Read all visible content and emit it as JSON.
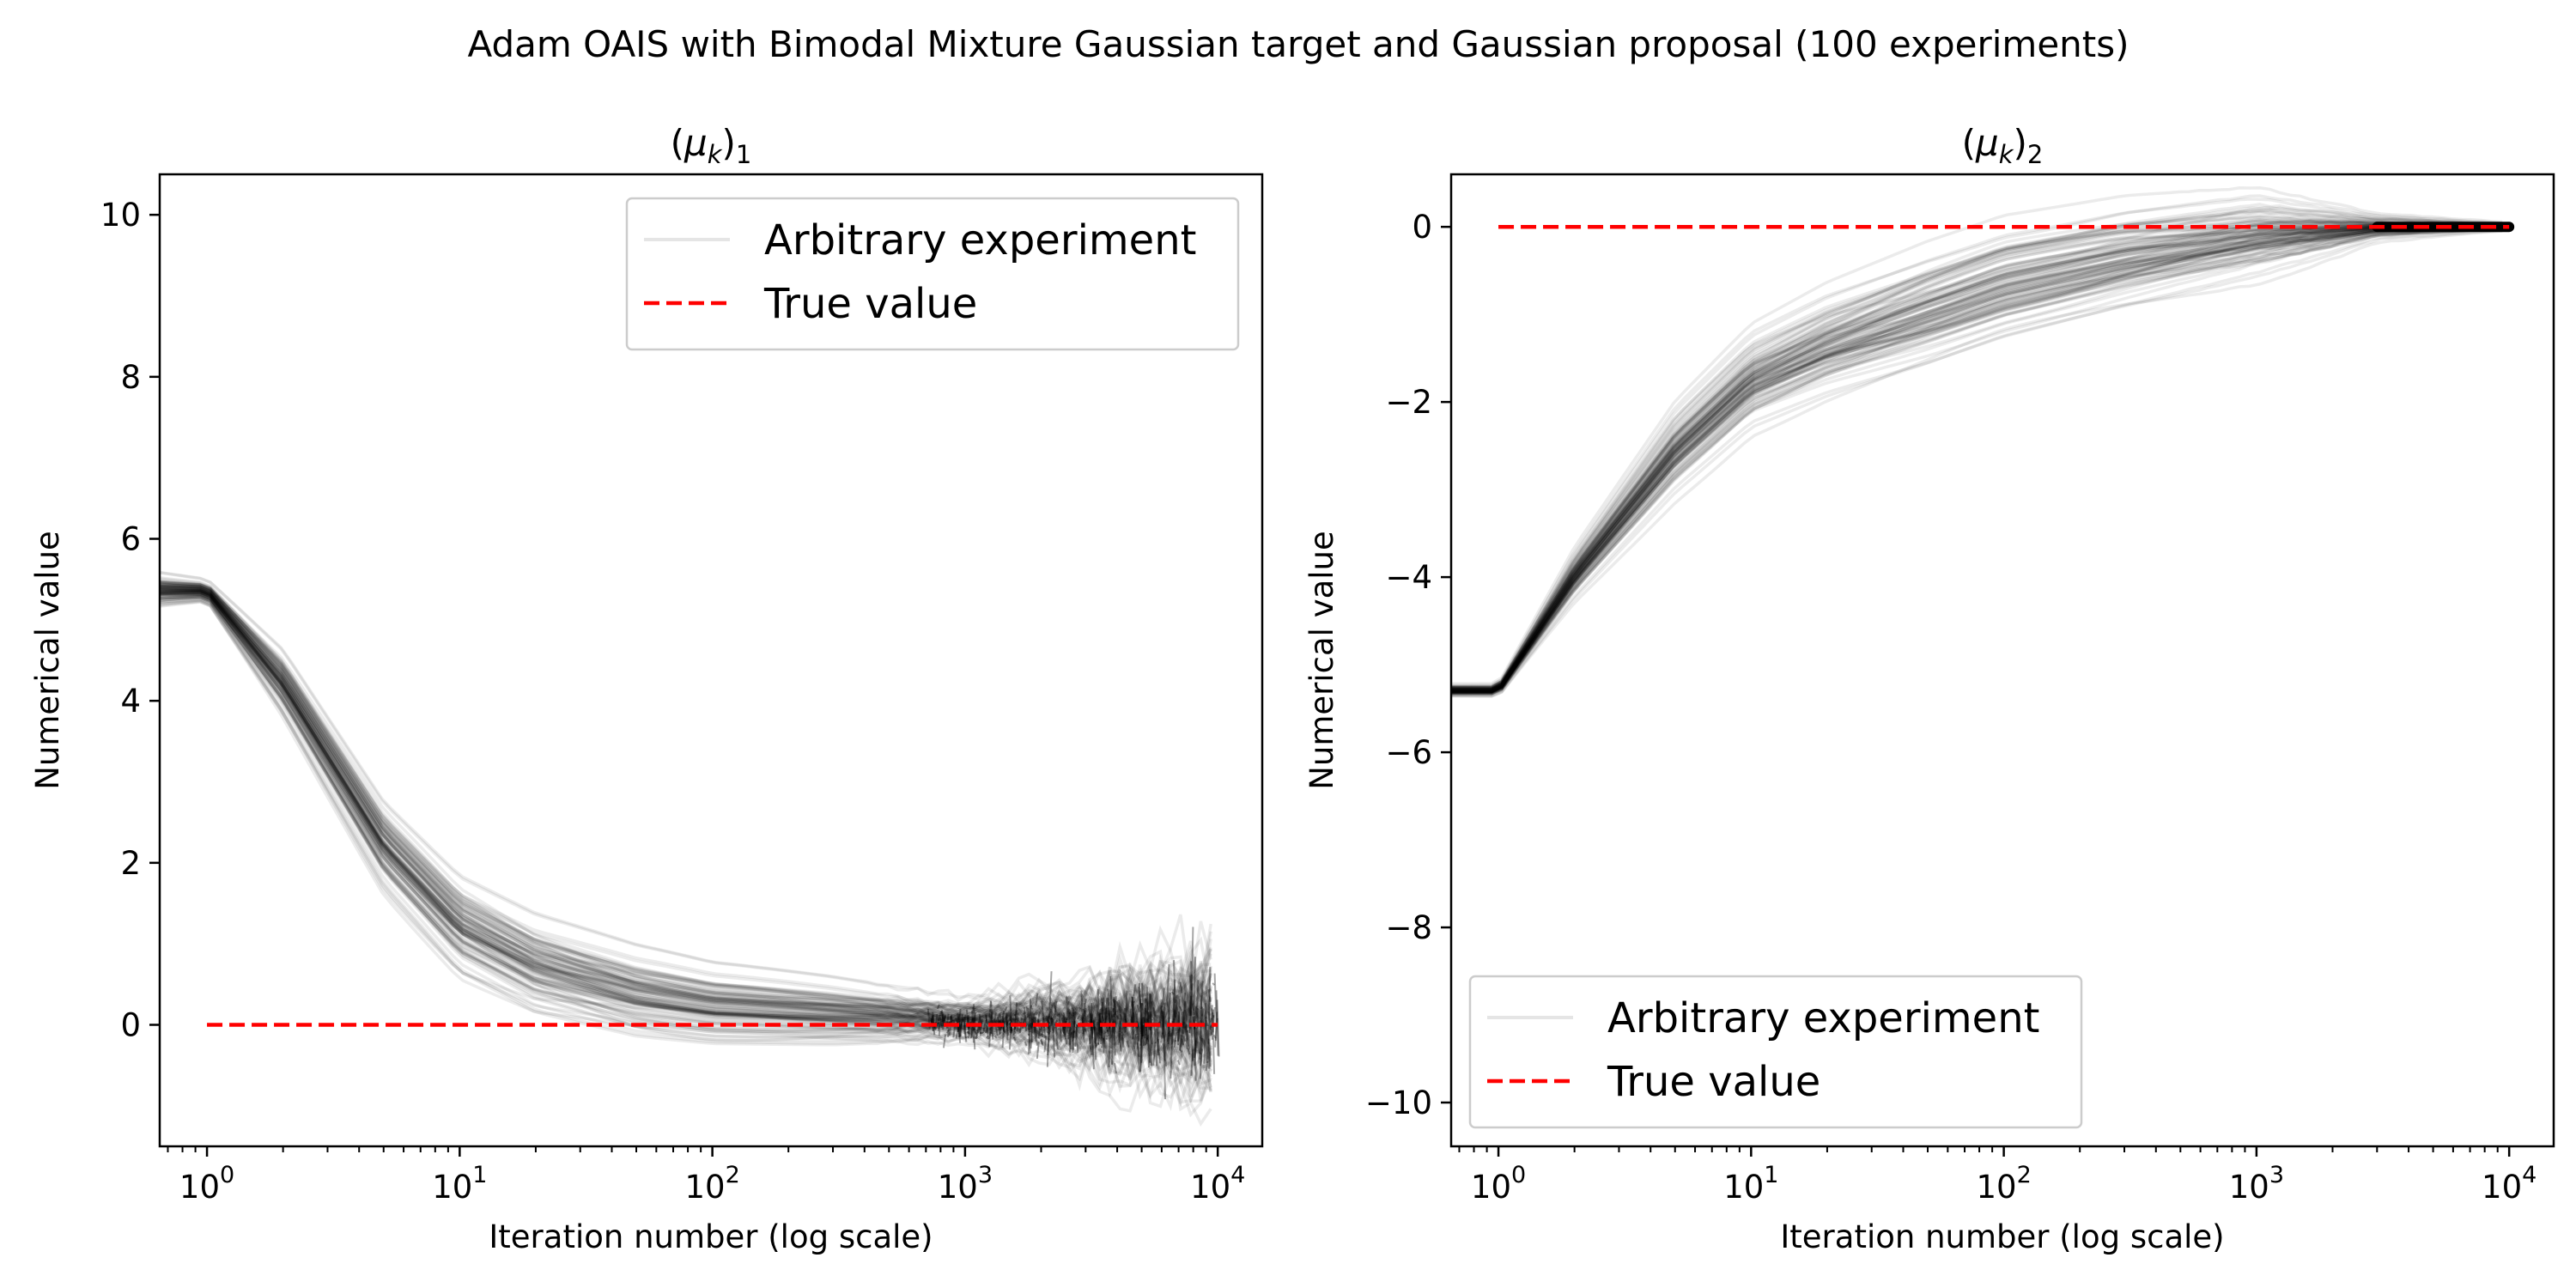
{
  "figure": {
    "title": "Adam OAIS with Bimodal Mixture Gaussian target and Gaussian proposal (100 experiments)"
  },
  "colors": {
    "experiment_lines": "#000000",
    "true_value": "#ff0000",
    "axes": "#000000",
    "background": "#ffffff"
  },
  "chart_data": [
    {
      "type": "line",
      "title": "(μk)1",
      "title_parts": {
        "base": "μ",
        "sub": "k",
        "index": "1"
      },
      "xlabel": "Iteration number (log scale)",
      "ylabel": "Numerical value",
      "xscale": "log",
      "xlim": [
        0.65,
        15000
      ],
      "ylim": [
        -1.5,
        10.5
      ],
      "x_ticks": [
        {
          "base": "10",
          "exp": "0"
        },
        {
          "base": "10",
          "exp": "1"
        },
        {
          "base": "10",
          "exp": "2"
        },
        {
          "base": "10",
          "exp": "3"
        },
        {
          "base": "10",
          "exp": "4"
        }
      ],
      "x_tick_values": [
        1,
        10,
        100,
        1000,
        10000
      ],
      "y_ticks": [
        "0",
        "2",
        "4",
        "6",
        "8",
        "10"
      ],
      "y_tick_values": [
        0,
        2,
        4,
        6,
        8,
        10
      ],
      "legend": {
        "position": "upper right",
        "entries": [
          "Arbitrary experiment",
          "True value"
        ]
      },
      "grid": false,
      "n_experiments": 100,
      "series": [
        {
          "name": "Arbitrary experiment",
          "style": "solid, translucent black",
          "x": [
            0.65,
            1,
            2,
            5,
            10,
            20,
            50,
            100,
            300,
            1000,
            3000,
            10000
          ],
          "center": [
            5.35,
            5.35,
            4.2,
            2.2,
            1.2,
            0.7,
            0.35,
            0.2,
            0.12,
            0.05,
            0.02,
            0.0
          ],
          "spread": [
            0.15,
            0.1,
            0.3,
            0.4,
            0.45,
            0.45,
            0.4,
            0.35,
            0.3,
            0.2,
            0.4,
            0.7
          ]
        },
        {
          "name": "True value",
          "style": "dashed red",
          "x": [
            1,
            10000
          ],
          "y": [
            0,
            0
          ]
        }
      ]
    },
    {
      "type": "line",
      "title": "(μk)2",
      "title_parts": {
        "base": "μ",
        "sub": "k",
        "index": "2"
      },
      "xlabel": "Iteration number (log scale)",
      "ylabel": "Numerical value",
      "xscale": "log",
      "xlim": [
        0.65,
        15000
      ],
      "ylim": [
        -10.5,
        0.6
      ],
      "x_ticks": [
        {
          "base": "10",
          "exp": "0"
        },
        {
          "base": "10",
          "exp": "1"
        },
        {
          "base": "10",
          "exp": "2"
        },
        {
          "base": "10",
          "exp": "3"
        },
        {
          "base": "10",
          "exp": "4"
        }
      ],
      "x_tick_values": [
        1,
        10,
        100,
        1000,
        10000
      ],
      "y_ticks": [
        "−10",
        "−8",
        "−6",
        "−4",
        "−2",
        "0"
      ],
      "y_tick_values": [
        -10,
        -8,
        -6,
        -4,
        -2,
        0
      ],
      "legend": {
        "position": "lower left",
        "entries": [
          "Arbitrary experiment",
          "True value"
        ]
      },
      "grid": false,
      "n_experiments": 100,
      "series": [
        {
          "name": "Arbitrary experiment",
          "style": "solid, translucent black",
          "x": [
            0.65,
            1,
            2,
            5,
            10,
            20,
            50,
            100,
            300,
            1000,
            3000,
            10000
          ],
          "center": [
            -5.3,
            -5.3,
            -4.0,
            -2.6,
            -1.8,
            -1.4,
            -1.0,
            -0.7,
            -0.4,
            -0.15,
            -0.02,
            0.0
          ],
          "spread": [
            0.05,
            0.05,
            0.2,
            0.35,
            0.4,
            0.45,
            0.5,
            0.5,
            0.45,
            0.35,
            0.1,
            0.03
          ]
        },
        {
          "name": "True value",
          "style": "dashed red",
          "x": [
            1,
            10000
          ],
          "y": [
            0,
            0
          ]
        }
      ]
    }
  ]
}
